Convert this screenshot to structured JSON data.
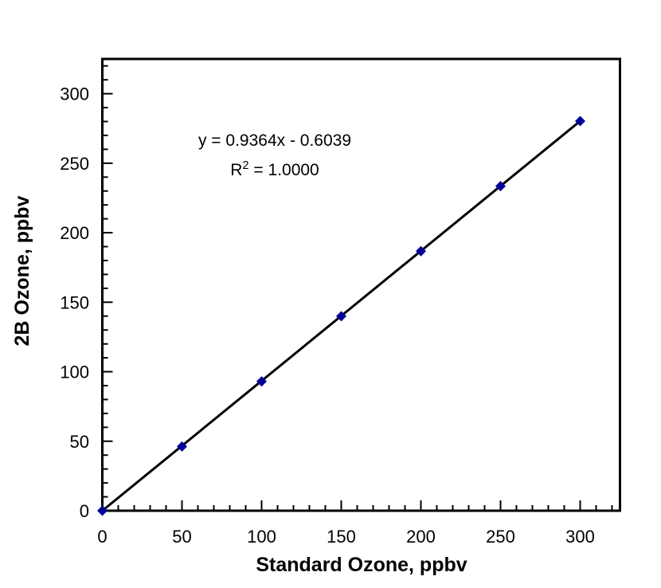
{
  "figure": {
    "background": "#ffffff"
  },
  "chart_data": {
    "type": "scatter",
    "title": "",
    "xlabel": "Standard Ozone, ppbv",
    "ylabel": "2B Ozone, ppbv",
    "x": [
      0,
      50,
      100,
      150,
      200,
      250,
      300
    ],
    "y": [
      0.0,
      46.2,
      93.0,
      139.9,
      186.7,
      233.5,
      280.3
    ],
    "trendline": {
      "slope": 0.9364,
      "intercept": -0.6039,
      "equation": "y = 0.9364x - 0.6039",
      "r2_prefix": "R",
      "r2_sup": "2",
      "r2_suffix": " = 1.0000",
      "r_squared": "1.0000"
    },
    "xlim": [
      0,
      325
    ],
    "ylim": [
      0,
      325
    ],
    "major_tick_step": 50,
    "minor_tick_step": 10,
    "x_tick_labels": [
      "0",
      "50",
      "100",
      "150",
      "200",
      "250",
      "300"
    ],
    "y_tick_labels": [
      "0",
      "50",
      "100",
      "150",
      "200",
      "250",
      "300"
    ],
    "grid": false,
    "legend": "none",
    "marker": "diamond",
    "marker_color": "#000099",
    "line_color": "#000000",
    "axis_color": "#000000",
    "text_color": "#000000"
  }
}
